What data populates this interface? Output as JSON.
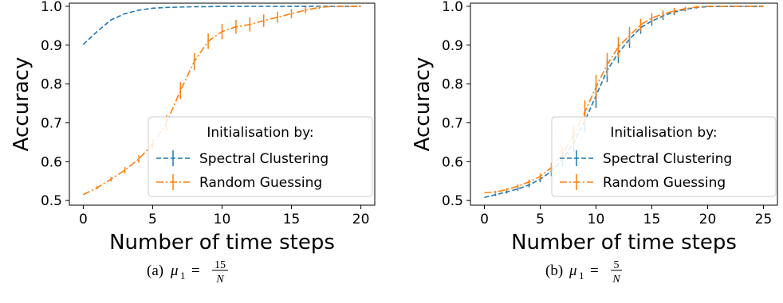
{
  "colors": {
    "spectral": "#1f77b4",
    "random": "#ff7f0e",
    "axis": "#000000",
    "legend_border": "#cccccc"
  },
  "chart_data": [
    {
      "type": "line",
      "panel": "a",
      "caption_prefix": "(a)",
      "caption_var": "μ",
      "caption_sub": "1",
      "caption_eq": "=",
      "caption_num": "15",
      "caption_den": "N",
      "xlabel": "Number of time steps",
      "ylabel": "Accuracy",
      "xlim": [
        -1,
        21
      ],
      "ylim": [
        0.488,
        1.008
      ],
      "xticks": [
        0,
        5,
        10,
        15,
        20
      ],
      "xtick_labels": [
        "0",
        "5",
        "10",
        "15",
        "20"
      ],
      "yticks": [
        0.5,
        0.6,
        0.7,
        0.8,
        0.9,
        1.0
      ],
      "ytick_labels": [
        "0.5",
        "0.6",
        "0.7",
        "0.8",
        "0.9",
        "1.0"
      ],
      "grid": false,
      "legend": {
        "placement": "lower-right",
        "title": "Initialisation by:",
        "entries": [
          "Spectral Clustering",
          "Random Guessing"
        ]
      },
      "series": [
        {
          "name": "Spectral Clustering",
          "style": "dashed",
          "color_key": "spectral",
          "x": [
            0,
            1,
            2,
            3,
            4,
            5,
            6,
            7,
            8,
            9,
            10,
            11,
            12,
            13,
            14,
            15,
            16,
            17,
            18,
            19,
            20
          ],
          "y": [
            0.902,
            0.935,
            0.965,
            0.981,
            0.99,
            0.995,
            0.997,
            0.998,
            0.999,
            0.999,
            1.0,
            1.0,
            1.0,
            1.0,
            1.0,
            1.0,
            1.0,
            1.0,
            1.0,
            1.0,
            1.0
          ],
          "err": [
            0,
            0,
            0,
            0,
            0,
            0,
            0,
            0,
            0,
            0,
            0,
            0,
            0,
            0,
            0,
            0,
            0,
            0,
            0,
            0,
            0
          ]
        },
        {
          "name": "Random Guessing",
          "style": "dashdot",
          "color_key": "random",
          "x": [
            0,
            1,
            2,
            3,
            4,
            5,
            6,
            7,
            8,
            9,
            10,
            11,
            12,
            13,
            14,
            15,
            16,
            17,
            18,
            19,
            20
          ],
          "y": [
            0.515,
            0.533,
            0.555,
            0.578,
            0.607,
            0.645,
            0.7,
            0.783,
            0.858,
            0.91,
            0.935,
            0.947,
            0.953,
            0.963,
            0.972,
            0.981,
            0.99,
            0.997,
            1.0,
            1.0,
            1.0
          ],
          "err": [
            0,
            0.004,
            0.006,
            0.008,
            0.01,
            0.012,
            0.02,
            0.022,
            0.022,
            0.02,
            0.02,
            0.018,
            0.018,
            0.016,
            0.014,
            0.012,
            0.008,
            0.004,
            0,
            0,
            0
          ]
        }
      ]
    },
    {
      "type": "line",
      "panel": "b",
      "caption_prefix": "(b)",
      "caption_var": "μ",
      "caption_sub": "1",
      "caption_eq": "=",
      "caption_num": "5",
      "caption_den": "N",
      "xlabel": "Number of time steps",
      "ylabel": "Accuracy",
      "xlim": [
        -1.25,
        26.25
      ],
      "ylim": [
        0.488,
        1.008
      ],
      "xticks": [
        0,
        5,
        10,
        15,
        20,
        25
      ],
      "xtick_labels": [
        "0",
        "5",
        "10",
        "15",
        "20",
        "25"
      ],
      "yticks": [
        0.5,
        0.6,
        0.7,
        0.8,
        0.9,
        1.0
      ],
      "ytick_labels": [
        "0.5",
        "0.6",
        "0.7",
        "0.8",
        "0.9",
        "1.0"
      ],
      "grid": false,
      "legend": {
        "placement": "lower-right",
        "title": "Initialisation by:",
        "entries": [
          "Spectral Clustering",
          "Random Guessing"
        ]
      },
      "series": [
        {
          "name": "Spectral Clustering",
          "style": "dashed",
          "color_key": "spectral",
          "x": [
            0,
            1,
            2,
            3,
            4,
            5,
            6,
            7,
            8,
            9,
            10,
            11,
            12,
            13,
            14,
            15,
            16,
            17,
            18,
            19,
            20,
            21,
            22,
            23,
            24,
            25
          ],
          "y": [
            0.508,
            0.515,
            0.522,
            0.53,
            0.54,
            0.555,
            0.575,
            0.605,
            0.65,
            0.705,
            0.77,
            0.835,
            0.88,
            0.915,
            0.945,
            0.962,
            0.975,
            0.985,
            0.992,
            0.997,
            0.999,
            1.0,
            1.0,
            1.0,
            1.0,
            1.0
          ],
          "err": [
            0,
            0.003,
            0.004,
            0.005,
            0.006,
            0.008,
            0.012,
            0.018,
            0.025,
            0.03,
            0.032,
            0.03,
            0.026,
            0.022,
            0.016,
            0.012,
            0.01,
            0.008,
            0.005,
            0.003,
            0,
            0,
            0,
            0,
            0,
            0
          ]
        },
        {
          "name": "Random Guessing",
          "style": "dashdot",
          "color_key": "random",
          "x": [
            0,
            1,
            2,
            3,
            4,
            5,
            6,
            7,
            8,
            9,
            10,
            11,
            12,
            13,
            14,
            15,
            16,
            17,
            18,
            19,
            20,
            21,
            22,
            23,
            24,
            25
          ],
          "y": [
            0.52,
            0.522,
            0.528,
            0.537,
            0.548,
            0.562,
            0.585,
            0.62,
            0.668,
            0.728,
            0.792,
            0.85,
            0.895,
            0.925,
            0.952,
            0.97,
            0.98,
            0.988,
            0.994,
            0.998,
            1.0,
            1.0,
            1.0,
            1.0,
            1.0,
            1.0
          ],
          "err": [
            0,
            0.003,
            0.004,
            0.005,
            0.006,
            0.008,
            0.012,
            0.018,
            0.025,
            0.03,
            0.032,
            0.03,
            0.026,
            0.022,
            0.016,
            0.012,
            0.01,
            0.008,
            0.005,
            0.003,
            0,
            0,
            0,
            0,
            0,
            0
          ]
        }
      ]
    }
  ]
}
